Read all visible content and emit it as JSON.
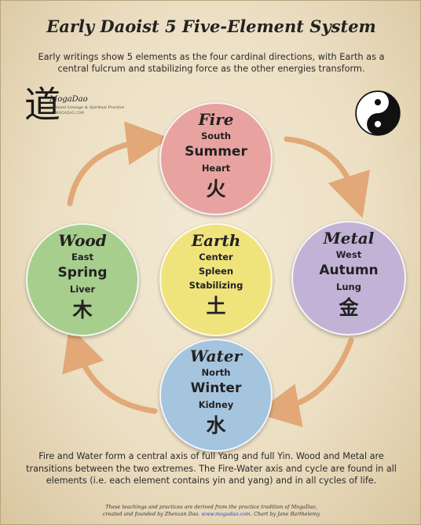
{
  "title": "Early Daoist 5 Five-Element System",
  "intro": "Early writings show 5 elements as the four cardinal directions, with Earth as a central fulcrum and stabilizing force as the other energies transform.",
  "logo": {
    "glyph": "道",
    "name": "MogaDao",
    "tagline": "A Daoist Lineage & Spiritual Practice",
    "url": "MOGADAO.COM"
  },
  "elements": {
    "fire": {
      "name": "Fire",
      "direction": "South",
      "season": "Summer",
      "organ": "Heart",
      "character": "火",
      "color": "#e8a3a0"
    },
    "wood": {
      "name": "Wood",
      "direction": "East",
      "season": "Spring",
      "organ": "Liver",
      "character": "木",
      "color": "#a8ce8e"
    },
    "earth": {
      "name": "Earth",
      "direction": "Center",
      "organ": "Spleen",
      "quality": "Stabilizing",
      "character": "土",
      "color": "#efe37c"
    },
    "metal": {
      "name": "Metal",
      "direction": "West",
      "season": "Autumn",
      "organ": "Lung",
      "character": "金",
      "color": "#c2b3d6"
    },
    "water": {
      "name": "Water",
      "direction": "North",
      "season": "Winter",
      "organ": "Kidney",
      "character": "水",
      "color": "#a5c4de"
    }
  },
  "closing": "Fire and Water form a central axis of full Yang and full Yin.  Wood and Metal are transitions between the two extremes. The Fire-Water axis and cycle are found in all elements (i.e. each element contains yin and yang) and in all cycles of life.",
  "credit": {
    "line1": "These teachings and practices are derived from the practice tradition of MogaDao,",
    "line2_prefix": "created and founded by Zhenzan Dao.",
    "link": "www.mogadao.com",
    "line2_suffix": ". Chart by Jane Barthelemy"
  },
  "colors": {
    "arrow": "#e2a877",
    "background": "#ecdfc3"
  }
}
